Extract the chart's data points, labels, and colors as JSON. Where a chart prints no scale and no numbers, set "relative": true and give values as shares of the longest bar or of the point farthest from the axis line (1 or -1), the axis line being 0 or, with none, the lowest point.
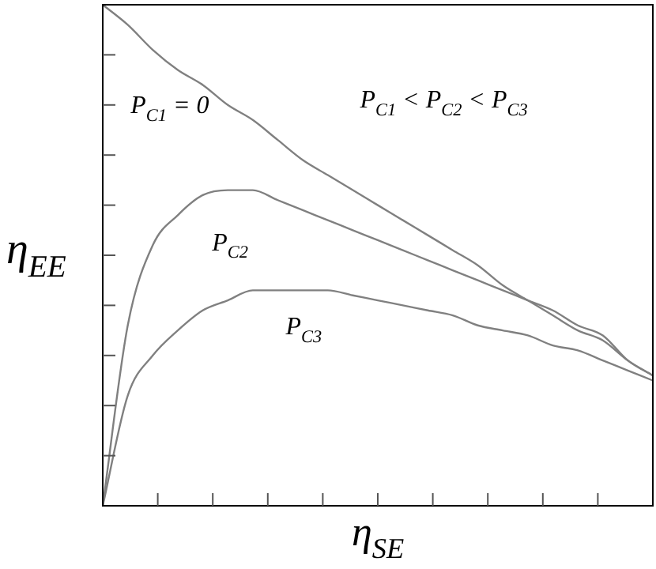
{
  "chart_data": {
    "type": "line",
    "relative": true,
    "xlabel": "η$_{SE}$",
    "ylabel": "η$_{EE}$",
    "annotations": [
      "P$_{C1}$ < P$_{C2}$ < P$_{C3}$"
    ],
    "categories": [
      null,
      null,
      null,
      null,
      null,
      null,
      null,
      null,
      null,
      null,
      null,
      null,
      null,
      null,
      null,
      null,
      null,
      null,
      null,
      null,
      null,
      null,
      null
    ],
    "series": [
      {
        "name": "P$_{C1}$ = 0",
        "color": "#808080",
        "values": [
          1.0,
          0.96,
          0.91,
          0.87,
          0.84,
          0.8,
          0.77,
          0.73,
          0.69,
          0.66,
          0.63,
          0.6,
          0.57,
          0.54,
          0.51,
          0.48,
          0.44,
          0.41,
          0.38,
          0.35,
          0.33,
          0.29,
          0.26
        ]
      },
      {
        "name": "P$_{C2}$",
        "color": "#808080",
        "values": [
          0,
          0.36,
          0.52,
          0.58,
          0.62,
          0.63,
          0.63,
          0.61,
          0.59,
          0.57,
          0.55,
          0.53,
          0.51,
          0.49,
          0.47,
          0.45,
          0.43,
          0.41,
          0.39,
          0.36,
          0.34,
          0.29,
          0.26
        ]
      },
      {
        "name": "P$_{C3}$",
        "color": "#808080",
        "values": [
          0,
          0.22,
          0.3,
          0.35,
          0.39,
          0.41,
          0.43,
          0.43,
          0.43,
          0.43,
          0.42,
          0.41,
          0.4,
          0.39,
          0.38,
          0.36,
          0.35,
          0.34,
          0.32,
          0.31,
          0.29,
          0.27,
          0.25
        ]
      }
    ],
    "legend": false,
    "marker": "none",
    "line_style": "solid",
    "grid": false
  }
}
